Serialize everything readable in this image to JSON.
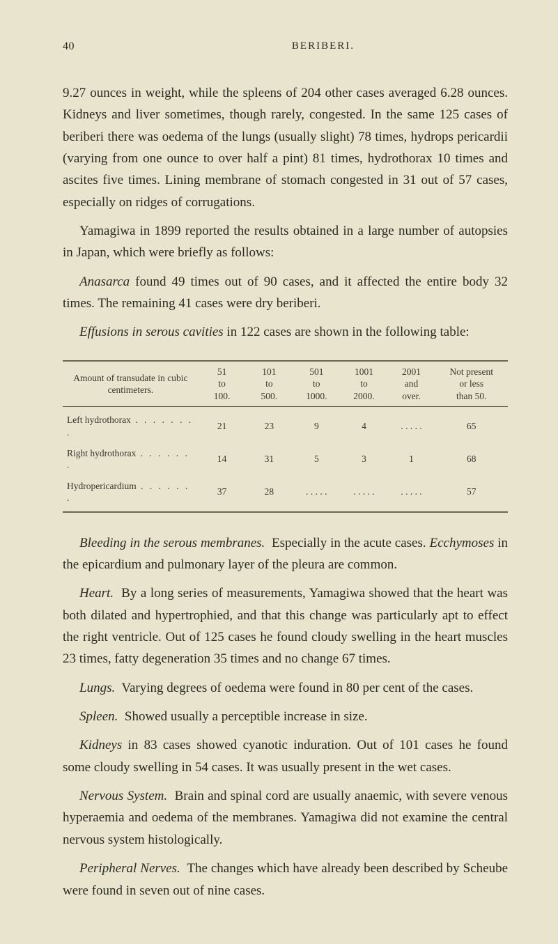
{
  "page": {
    "number": "40",
    "running_title": "BERIBERI.",
    "background_color": "#e8e4cd",
    "text_color": "#2a2a22",
    "body_fontsize": 19,
    "table_fontsize": 13.5,
    "line_height": 1.65
  },
  "paragraphs": {
    "p1": "9.27 ounces in weight, while the spleens of 204 other cases averaged 6.28 ounces. Kidneys and liver sometimes, though rarely, congested. In the same 125 cases of beriberi there was oedema of the lungs (usually slight) 78 times, hydrops pericardii (varying from one ounce to over half a pint) 81 times, hydrothorax 10 times and ascites five times. Lining membrane of stomach congested in 31 out of 57 cases, especially on ridges of corrugations.",
    "p2": "Yamagiwa in 1899 reported the results obtained in a large number of autopsies in Japan, which were briefly as follows:",
    "p3_pre_italic": "",
    "p3_italic": "Anasarca",
    "p3_rest": " found 49 times out of 90 cases, and it affected the entire body 32 times. The remaining 41 cases were dry beriberi.",
    "p4_italic": "Effusions in serous cavities",
    "p4_rest": " in 122 cases are shown in the following table:",
    "p5_italic": "Bleeding in the serous membranes.",
    "p5_rest": "  Especially in the acute cases. ",
    "p5_italic2": "Ecchymoses",
    "p5_rest2": " in the epicardium and pulmonary layer of the pleura are common.",
    "p6_italic": "Heart.",
    "p6_rest": "  By a long series of measurements, Yamagiwa showed that the heart was both dilated and hypertrophied, and that this change was particularly apt to effect the right ventricle. Out of 125 cases he found cloudy swelling in the heart muscles 23 times, fatty degeneration 35 times and no change 67 times.",
    "p7_italic": "Lungs.",
    "p7_rest": "  Varying degrees of oedema were found in 80 per cent of the cases.",
    "p8_italic": "Spleen.",
    "p8_rest": "  Showed usually a perceptible increase in size.",
    "p9_italic": "Kidneys",
    "p9_rest": " in 83 cases showed cyanotic induration. Out of 101 cases he found some cloudy swelling in 54 cases. It was usually present in the wet cases.",
    "p10_italic": "Nervous System.",
    "p10_rest": "  Brain and spinal cord are usually anaemic, with severe venous hyperaemia and oedema of the membranes. Yamagiwa did not examine the central nervous system histologically.",
    "p11_italic": "Peripheral Nerves.",
    "p11_rest": "  The changes which have already been described by Scheube were found in seven out of nine cases."
  },
  "table": {
    "type": "table",
    "border_color": "#6a6650",
    "stub_header": "Amount of transudate in cubic centimeters.",
    "columns": [
      "51\nto\n100.",
      "101\nto\n500.",
      "501\nto\n1000.",
      "1001\nto\n2000.",
      "2001\nand\nover.",
      "Not present\nor less\nthan 50."
    ],
    "rows": [
      {
        "label": "Left hydrothorax",
        "cells": [
          "21",
          "23",
          "9",
          "4",
          ". . . . .",
          "65"
        ]
      },
      {
        "label": "Right hydrothorax",
        "cells": [
          "14",
          "31",
          "5",
          "3",
          "1",
          "68"
        ]
      },
      {
        "label": "Hydropericardium",
        "cells": [
          "37",
          "28",
          ". . . . .",
          ". . . . .",
          ". . . . .",
          "57"
        ]
      }
    ]
  }
}
